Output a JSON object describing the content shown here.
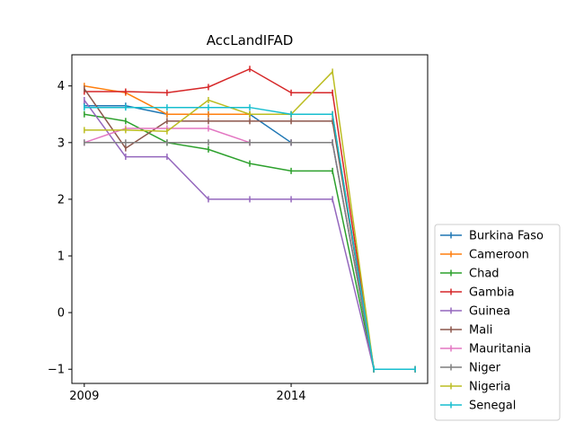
{
  "chart_data": {
    "type": "line",
    "title": "AccLandIFAD",
    "xlabel": "",
    "ylabel": "",
    "x": [
      2009,
      2010,
      2011,
      2012,
      2013,
      2014,
      2015,
      2016,
      2017
    ],
    "xlim": [
      2008.7,
      2017.3
    ],
    "ylim": [
      -1.25,
      4.55
    ],
    "xticks": [
      2009,
      2014
    ],
    "xtick_labels": [
      "2009",
      "2014"
    ],
    "yticks": [
      -1,
      0,
      1,
      2,
      3,
      4
    ],
    "ytick_labels": [
      "−1",
      "0",
      "1",
      "2",
      "3",
      "4"
    ],
    "grid": false,
    "legend_position": "lower-right outside",
    "series": [
      {
        "name": "Burkina Faso",
        "color": "#1f77b4",
        "values": [
          3.65,
          3.65,
          3.5,
          3.5,
          3.5,
          3.0,
          3.0,
          -1,
          -1
        ]
      },
      {
        "name": "Cameroon",
        "color": "#ff7f0e",
        "values": [
          4.0,
          3.88,
          3.5,
          3.5,
          3.5,
          3.5,
          3.5,
          -1,
          -1
        ]
      },
      {
        "name": "Chad",
        "color": "#2ca02c",
        "values": [
          3.5,
          3.38,
          3.0,
          2.88,
          2.63,
          2.5,
          2.5,
          -1,
          -1
        ]
      },
      {
        "name": "Gambia",
        "color": "#d62728",
        "values": [
          3.9,
          3.9,
          3.88,
          3.98,
          4.3,
          3.88,
          3.88,
          -1,
          -1
        ]
      },
      {
        "name": "Guinea",
        "color": "#9467bd",
        "values": [
          3.75,
          2.75,
          2.75,
          2.0,
          2.0,
          2.0,
          2.0,
          -1,
          -1
        ]
      },
      {
        "name": "Mali",
        "color": "#8c564b",
        "values": [
          3.95,
          2.9,
          3.38,
          3.38,
          3.38,
          3.38,
          3.38,
          -1,
          -1
        ]
      },
      {
        "name": "Mauritania",
        "color": "#e377c2",
        "values": [
          3.0,
          3.25,
          3.25,
          3.25,
          3.0,
          3.0,
          3.0,
          -1,
          -1
        ]
      },
      {
        "name": "Niger",
        "color": "#7f7f7f",
        "values": [
          3.0,
          3.0,
          3.0,
          3.0,
          3.0,
          3.0,
          3.0,
          -1,
          -1
        ]
      },
      {
        "name": "Nigeria",
        "color": "#bcbd22",
        "values": [
          3.22,
          3.22,
          3.2,
          3.75,
          3.5,
          3.5,
          4.25,
          -1,
          -1
        ]
      },
      {
        "name": "Senegal",
        "color": "#17becf",
        "values": [
          3.62,
          3.62,
          3.62,
          3.62,
          3.62,
          3.5,
          3.5,
          -1,
          -1
        ]
      }
    ]
  }
}
